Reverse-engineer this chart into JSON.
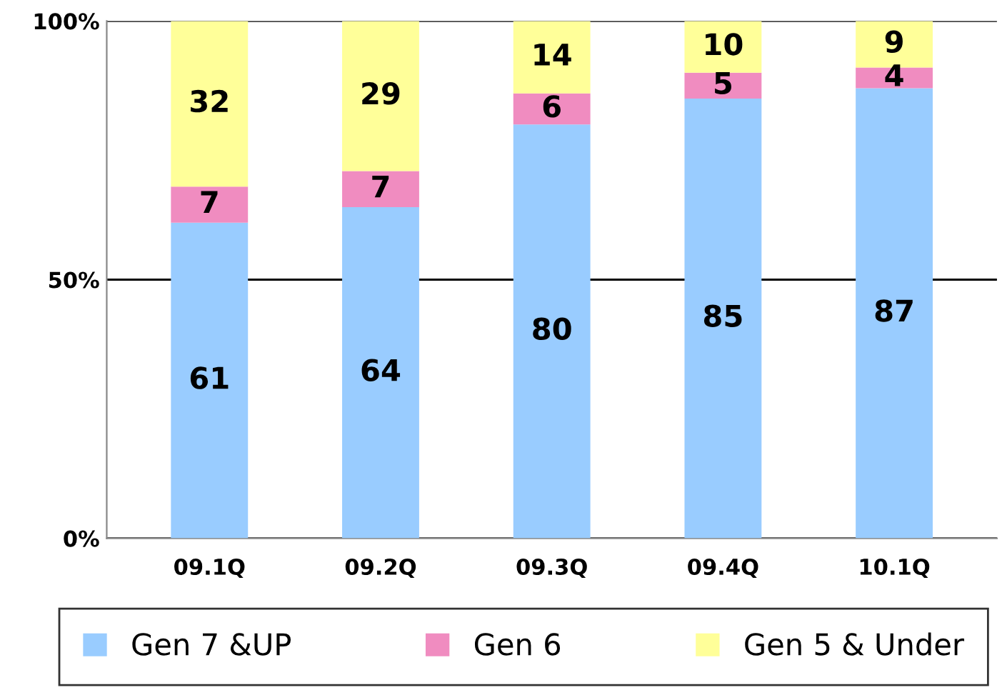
{
  "chart_data": {
    "type": "bar",
    "stacked": true,
    "categories": [
      "09.1Q",
      "09.2Q",
      "09.3Q",
      "09.4Q",
      "10.1Q"
    ],
    "series": [
      {
        "name": "Gen 7 &UP",
        "color": "#99ccff",
        "values": [
          61,
          64,
          80,
          85,
          87
        ]
      },
      {
        "name": "Gen 6",
        "color": "#f08cc0",
        "values": [
          7,
          7,
          6,
          5,
          4
        ]
      },
      {
        "name": "Gen 5 & Under",
        "color": "#ffff99",
        "values": [
          32,
          29,
          14,
          10,
          9
        ]
      }
    ],
    "ylim": [
      0,
      100
    ],
    "yticks": [
      {
        "value": 0,
        "label": "0%"
      },
      {
        "value": 50,
        "label": "50%"
      },
      {
        "value": 100,
        "label": "100%"
      }
    ],
    "grid": "y",
    "legend": "bottom",
    "data_labels": true
  }
}
